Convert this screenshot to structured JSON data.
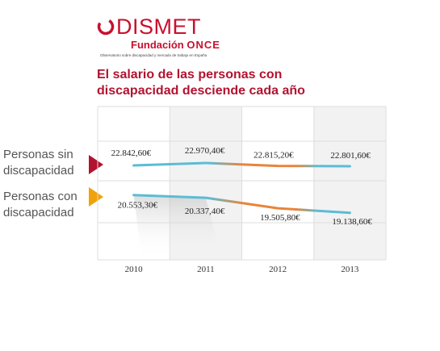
{
  "brand": {
    "name": "DISMET",
    "sub_prefix": "Fundación",
    "sub_suffix": "ONCE",
    "tagline": "Observatorio sobre discapacidad y mercado de trabajo en España",
    "color": "#c8102e"
  },
  "headline": "El salario de las personas con discapacidad desciende cada año",
  "row_labels": {
    "series_1": "Personas sin discapacidad",
    "series_2": "Personas con discapacidad"
  },
  "colors": {
    "headline": "#b2132f",
    "marker_1": "#b2132f",
    "marker_2": "#f0a20a",
    "line_blue": "#5bbcd6",
    "line_orange": "#e8843a",
    "band_shaded": "#f2f2f2",
    "grid": "#dddddd"
  },
  "chart_data": {
    "type": "line",
    "title": "El salario de las personas con discapacidad desciende cada año",
    "categories": [
      "2010",
      "2011",
      "2012",
      "2013"
    ],
    "series": [
      {
        "name": "Personas sin discapacidad",
        "values": [
          22842.6,
          22970.4,
          22815.2,
          22801.6
        ],
        "labels": [
          "22.842,60€",
          "22.970,40€",
          "22.815,20€",
          "22.801,60€"
        ]
      },
      {
        "name": "Personas con discapacidad",
        "values": [
          20553.3,
          20337.4,
          19505.8,
          19138.6
        ],
        "labels": [
          "20.553,30€",
          "20.337,40€",
          "19.505,80€",
          "19.138,60€"
        ]
      }
    ],
    "grid": true,
    "legend": "left"
  }
}
